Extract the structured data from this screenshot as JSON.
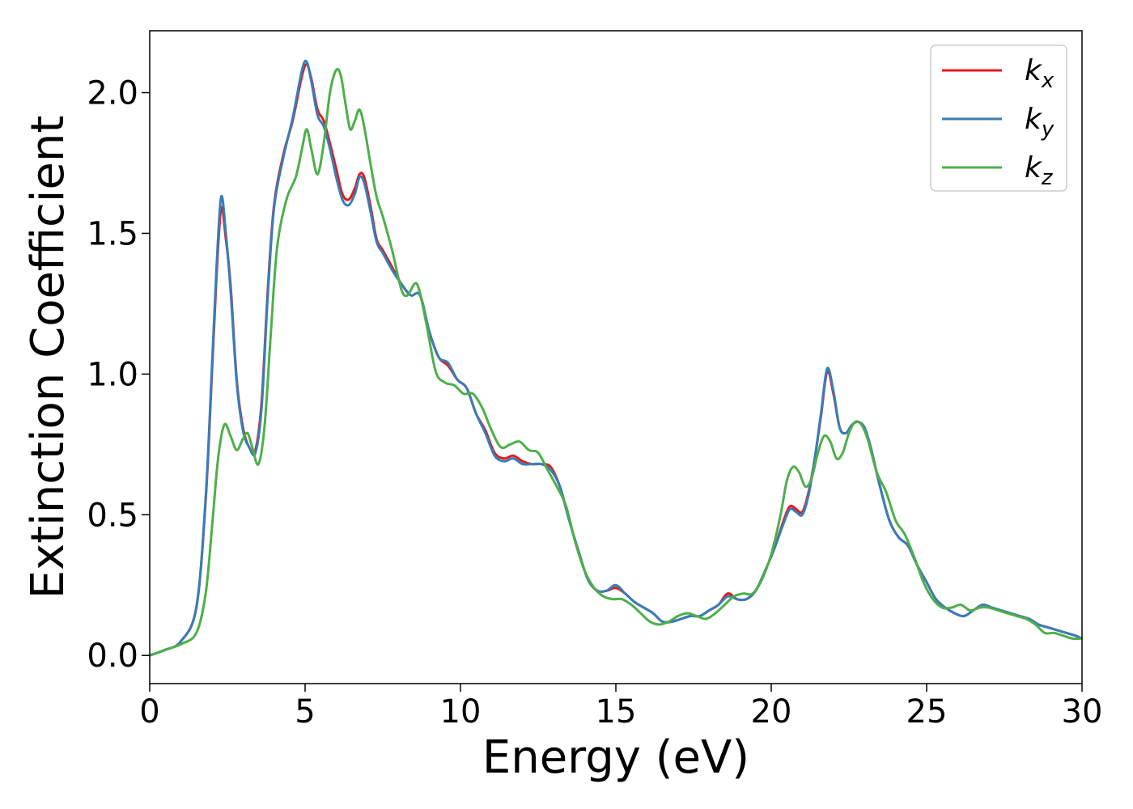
{
  "chart_data": {
    "type": "line",
    "title": "",
    "xlabel": "Energy (eV)",
    "ylabel": "Extinction Coefficient",
    "xlim": [
      0,
      30
    ],
    "ylim": [
      -0.1,
      2.22
    ],
    "xticks": [
      0,
      5,
      10,
      15,
      20,
      25,
      30
    ],
    "xtick_labels": [
      "0",
      "5",
      "10",
      "15",
      "20",
      "25",
      "30"
    ],
    "yticks": [
      0.0,
      0.5,
      1.0,
      1.5,
      2.0
    ],
    "ytick_labels": [
      "0.0",
      "0.5",
      "1.0",
      "1.5",
      "2.0"
    ],
    "grid": false,
    "legend": {
      "placement": "top-right",
      "entries": [
        {
          "base": "k",
          "sub": "x"
        },
        {
          "base": "k",
          "sub": "y"
        },
        {
          "base": "k",
          "sub": "z"
        }
      ]
    },
    "series": [
      {
        "color": "#e41a1c",
        "x": [
          0,
          0.5,
          1,
          1.5,
          1.8,
          2.0,
          2.15,
          2.3,
          2.45,
          2.6,
          2.8,
          3.0,
          3.2,
          3.4,
          3.6,
          3.8,
          4.0,
          4.3,
          4.6,
          4.9,
          5.05,
          5.2,
          5.4,
          5.6,
          5.8,
          6.0,
          6.2,
          6.4,
          6.6,
          6.75,
          6.9,
          7.1,
          7.3,
          7.5,
          7.8,
          8.1,
          8.4,
          8.7,
          9.0,
          9.3,
          9.6,
          9.9,
          10.2,
          10.5,
          10.8,
          11.1,
          11.4,
          11.7,
          12.0,
          12.3,
          12.6,
          12.9,
          13.2,
          13.5,
          13.8,
          14.1,
          14.4,
          14.7,
          15.0,
          15.3,
          15.6,
          15.9,
          16.2,
          16.5,
          16.8,
          17.1,
          17.4,
          17.7,
          18.0,
          18.3,
          18.6,
          18.9,
          19.2,
          19.5,
          19.8,
          20.1,
          20.4,
          20.6,
          20.8,
          21.0,
          21.2,
          21.4,
          21.6,
          21.8,
          22.0,
          22.2,
          22.4,
          22.6,
          22.8,
          23.0,
          23.2,
          23.5,
          23.8,
          24.1,
          24.4,
          24.7,
          25.0,
          25.3,
          25.6,
          25.9,
          26.2,
          26.5,
          26.8,
          27.1,
          27.4,
          27.7,
          28.0,
          28.3,
          28.6,
          28.9,
          29.2,
          29.5,
          29.8,
          30
        ],
        "y": [
          0.0,
          0.02,
          0.05,
          0.17,
          0.55,
          1.0,
          1.35,
          1.59,
          1.48,
          1.32,
          0.98,
          0.81,
          0.74,
          0.73,
          0.9,
          1.3,
          1.6,
          1.78,
          1.9,
          2.06,
          2.1,
          2.05,
          1.94,
          1.9,
          1.82,
          1.73,
          1.64,
          1.62,
          1.66,
          1.71,
          1.7,
          1.6,
          1.48,
          1.44,
          1.38,
          1.32,
          1.28,
          1.28,
          1.15,
          1.06,
          1.03,
          0.98,
          0.95,
          0.86,
          0.8,
          0.72,
          0.7,
          0.71,
          0.69,
          0.68,
          0.68,
          0.67,
          0.6,
          0.48,
          0.37,
          0.27,
          0.23,
          0.23,
          0.24,
          0.22,
          0.19,
          0.17,
          0.15,
          0.12,
          0.12,
          0.13,
          0.14,
          0.14,
          0.16,
          0.18,
          0.22,
          0.2,
          0.2,
          0.23,
          0.3,
          0.38,
          0.48,
          0.53,
          0.52,
          0.51,
          0.58,
          0.7,
          0.85,
          1.01,
          0.93,
          0.81,
          0.79,
          0.82,
          0.83,
          0.81,
          0.74,
          0.6,
          0.48,
          0.42,
          0.39,
          0.32,
          0.26,
          0.2,
          0.17,
          0.15,
          0.14,
          0.16,
          0.18,
          0.17,
          0.16,
          0.15,
          0.14,
          0.13,
          0.11,
          0.1,
          0.09,
          0.08,
          0.07,
          0.06
        ]
      },
      {
        "color": "#377eb8",
        "x": [
          0,
          0.5,
          1,
          1.5,
          1.8,
          2.0,
          2.15,
          2.3,
          2.45,
          2.6,
          2.8,
          3.0,
          3.2,
          3.4,
          3.6,
          3.8,
          4.0,
          4.3,
          4.6,
          4.9,
          5.05,
          5.2,
          5.4,
          5.6,
          5.8,
          6.0,
          6.2,
          6.4,
          6.6,
          6.75,
          6.9,
          7.1,
          7.3,
          7.5,
          7.8,
          8.1,
          8.4,
          8.7,
          9.0,
          9.3,
          9.6,
          9.9,
          10.2,
          10.5,
          10.8,
          11.1,
          11.4,
          11.7,
          12.0,
          12.3,
          12.6,
          12.9,
          13.2,
          13.5,
          13.8,
          14.1,
          14.4,
          14.7,
          15.0,
          15.3,
          15.6,
          15.9,
          16.2,
          16.5,
          16.8,
          17.1,
          17.4,
          17.7,
          18.0,
          18.3,
          18.6,
          18.9,
          19.2,
          19.5,
          19.8,
          20.1,
          20.4,
          20.6,
          20.8,
          21.0,
          21.2,
          21.4,
          21.6,
          21.8,
          22.0,
          22.2,
          22.4,
          22.6,
          22.8,
          23.0,
          23.2,
          23.5,
          23.8,
          24.1,
          24.4,
          24.7,
          25.0,
          25.3,
          25.6,
          25.9,
          26.2,
          26.5,
          26.8,
          27.1,
          27.4,
          27.7,
          28.0,
          28.3,
          28.6,
          28.9,
          29.2,
          29.5,
          29.8,
          30
        ],
        "y": [
          0.0,
          0.02,
          0.05,
          0.17,
          0.56,
          1.02,
          1.38,
          1.63,
          1.5,
          1.3,
          0.97,
          0.8,
          0.74,
          0.72,
          0.88,
          1.28,
          1.59,
          1.77,
          1.91,
          2.08,
          2.11,
          2.04,
          1.92,
          1.88,
          1.8,
          1.7,
          1.62,
          1.6,
          1.64,
          1.7,
          1.68,
          1.58,
          1.47,
          1.43,
          1.37,
          1.32,
          1.28,
          1.28,
          1.15,
          1.06,
          1.04,
          0.98,
          0.95,
          0.86,
          0.79,
          0.71,
          0.69,
          0.7,
          0.68,
          0.68,
          0.68,
          0.66,
          0.6,
          0.48,
          0.37,
          0.27,
          0.23,
          0.23,
          0.25,
          0.22,
          0.19,
          0.17,
          0.15,
          0.12,
          0.12,
          0.13,
          0.14,
          0.14,
          0.16,
          0.18,
          0.21,
          0.2,
          0.2,
          0.23,
          0.3,
          0.38,
          0.47,
          0.52,
          0.51,
          0.5,
          0.57,
          0.7,
          0.86,
          1.02,
          0.94,
          0.81,
          0.79,
          0.82,
          0.83,
          0.81,
          0.74,
          0.6,
          0.48,
          0.42,
          0.39,
          0.32,
          0.26,
          0.2,
          0.17,
          0.15,
          0.14,
          0.16,
          0.18,
          0.17,
          0.16,
          0.15,
          0.14,
          0.13,
          0.11,
          0.1,
          0.09,
          0.08,
          0.07,
          0.06
        ]
      },
      {
        "color": "#4daf4a",
        "x": [
          0,
          0.5,
          1,
          1.5,
          1.8,
          2.0,
          2.2,
          2.4,
          2.6,
          2.8,
          3.0,
          3.15,
          3.3,
          3.5,
          3.7,
          3.9,
          4.1,
          4.4,
          4.7,
          4.9,
          5.05,
          5.2,
          5.4,
          5.6,
          5.8,
          6.0,
          6.15,
          6.3,
          6.45,
          6.6,
          6.75,
          6.9,
          7.1,
          7.3,
          7.5,
          7.8,
          8.1,
          8.3,
          8.6,
          8.9,
          9.2,
          9.5,
          9.8,
          10.1,
          10.4,
          10.7,
          11.0,
          11.3,
          11.6,
          11.9,
          12.2,
          12.5,
          12.8,
          13.1,
          13.4,
          13.7,
          14.0,
          14.3,
          14.6,
          14.9,
          15.2,
          15.5,
          15.8,
          16.1,
          16.4,
          16.7,
          17.0,
          17.3,
          17.6,
          17.9,
          18.2,
          18.5,
          18.8,
          19.1,
          19.4,
          19.7,
          20.0,
          20.3,
          20.5,
          20.7,
          20.9,
          21.1,
          21.3,
          21.5,
          21.7,
          21.9,
          22.1,
          22.3,
          22.5,
          22.7,
          22.9,
          23.1,
          23.4,
          23.7,
          24.0,
          24.3,
          24.6,
          24.9,
          25.2,
          25.5,
          25.8,
          26.1,
          26.4,
          26.7,
          27.0,
          27.3,
          27.6,
          27.9,
          28.2,
          28.5,
          28.8,
          29.1,
          29.4,
          29.7,
          30
        ],
        "y": [
          0.0,
          0.02,
          0.04,
          0.08,
          0.22,
          0.45,
          0.7,
          0.82,
          0.78,
          0.73,
          0.77,
          0.79,
          0.74,
          0.68,
          0.82,
          1.15,
          1.45,
          1.62,
          1.7,
          1.8,
          1.87,
          1.8,
          1.71,
          1.82,
          2.0,
          2.08,
          2.06,
          1.96,
          1.87,
          1.9,
          1.94,
          1.88,
          1.75,
          1.63,
          1.56,
          1.44,
          1.3,
          1.28,
          1.32,
          1.18,
          1.01,
          0.97,
          0.96,
          0.93,
          0.93,
          0.88,
          0.8,
          0.74,
          0.75,
          0.76,
          0.73,
          0.72,
          0.66,
          0.6,
          0.53,
          0.4,
          0.3,
          0.24,
          0.21,
          0.2,
          0.2,
          0.18,
          0.15,
          0.12,
          0.11,
          0.12,
          0.14,
          0.15,
          0.14,
          0.13,
          0.15,
          0.18,
          0.21,
          0.22,
          0.22,
          0.27,
          0.36,
          0.5,
          0.62,
          0.67,
          0.65,
          0.6,
          0.63,
          0.72,
          0.78,
          0.76,
          0.7,
          0.72,
          0.79,
          0.83,
          0.82,
          0.77,
          0.65,
          0.58,
          0.48,
          0.43,
          0.35,
          0.26,
          0.2,
          0.17,
          0.17,
          0.18,
          0.16,
          0.17,
          0.17,
          0.16,
          0.15,
          0.14,
          0.13,
          0.11,
          0.08,
          0.08,
          0.07,
          0.06,
          0.06
        ]
      }
    ]
  }
}
